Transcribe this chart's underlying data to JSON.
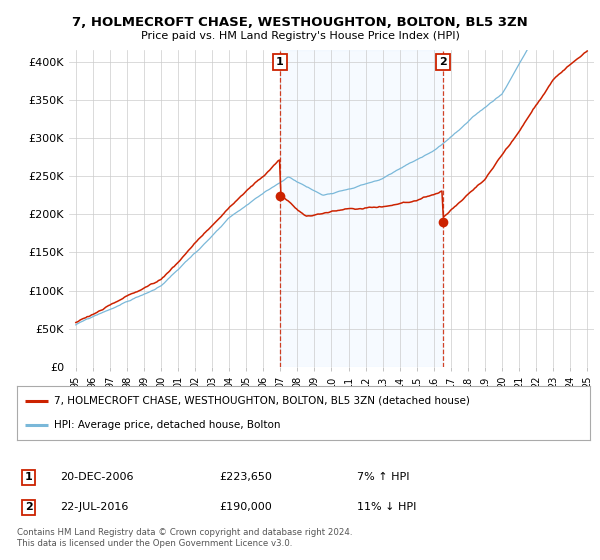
{
  "title": "7, HOLMECROFT CHASE, WESTHOUGHTON, BOLTON, BL5 3ZN",
  "subtitle": "Price paid vs. HM Land Registry's House Price Index (HPI)",
  "ylabel_ticks": [
    "£0",
    "£50K",
    "£100K",
    "£150K",
    "£200K",
    "£250K",
    "£300K",
    "£350K",
    "£400K"
  ],
  "ytick_values": [
    0,
    50000,
    100000,
    150000,
    200000,
    250000,
    300000,
    350000,
    400000
  ],
  "ylim": [
    0,
    415000
  ],
  "x_start_year": 1995,
  "x_end_year": 2025,
  "sale1_date": "20-DEC-2006",
  "sale1_price": 223650,
  "sale1_x": 2006.97,
  "sale2_date": "22-JUL-2016",
  "sale2_price": 190000,
  "sale2_x": 2016.55,
  "legend_label1": "7, HOLMECROFT CHASE, WESTHOUGHTON, BOLTON, BL5 3ZN (detached house)",
  "legend_label2": "HPI: Average price, detached house, Bolton",
  "table_row1": [
    "1",
    "20-DEC-2006",
    "£223,650",
    "7% ↑ HPI"
  ],
  "table_row2": [
    "2",
    "22-JUL-2016",
    "£190,000",
    "11% ↓ HPI"
  ],
  "footnote": "Contains HM Land Registry data © Crown copyright and database right 2024.\nThis data is licensed under the Open Government Licence v3.0.",
  "hpi_color": "#7ab8d9",
  "price_color": "#cc2200",
  "vline_color": "#cc2200",
  "shade_color": "#ddeeff",
  "bg_color": "#ffffff",
  "grid_color": "#cccccc"
}
